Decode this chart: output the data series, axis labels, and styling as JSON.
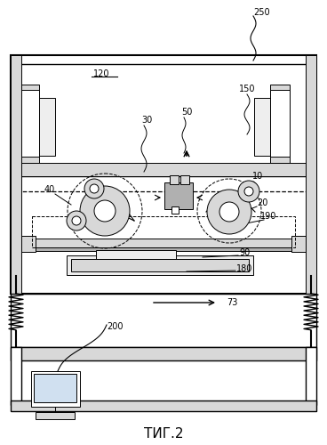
{
  "title": "ΤИГ.2",
  "bg_color": "#ffffff",
  "line_color": "#000000",
  "lw_main": 1.5,
  "lw_med": 1.0,
  "lw_thin": 0.7,
  "lw_dashed": 0.7,
  "gray_fill": "#d8d8d8",
  "light_gray": "#eeeeee",
  "mid_gray": "#b0b0b0"
}
